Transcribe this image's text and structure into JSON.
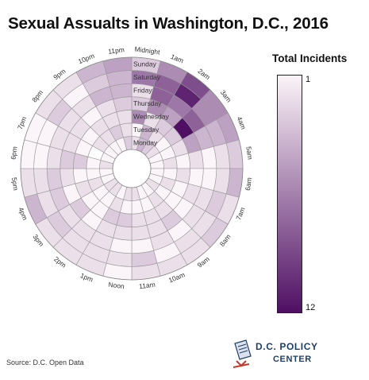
{
  "title": "Sexual Assualts in Washington, D.C., 2016",
  "source": "Source: D.C. Open Data",
  "logo": {
    "line1": "D.C. POLICY",
    "line2": "CENTER"
  },
  "legend": {
    "title": "Total Incidents",
    "min_label": "1",
    "max_label": "12"
  },
  "colors": {
    "low": "#fbf4f8",
    "high": "#4f0f63",
    "grid": "#999999",
    "empty": "#ffffff"
  },
  "chart_data": {
    "type": "heatmap",
    "layout": "radial",
    "title": "Sexual Assualts in Washington, D.C., 2016",
    "legend_title": "Total Incidents",
    "color_range": [
      1,
      12
    ],
    "hours": [
      "Midnight",
      "1am",
      "2am",
      "3am",
      "4am",
      "5am",
      "6am",
      "7am",
      "8am",
      "9am",
      "10am",
      "11am",
      "Noon",
      "1pm",
      "2pm",
      "3pm",
      "4pm",
      "5pm",
      "6pm",
      "7pm",
      "8pm",
      "9pm",
      "10pm",
      "11pm"
    ],
    "days_inner_to_outer": [
      "Monday",
      "Tuesday",
      "Wednesday",
      "Thursday",
      "Friday",
      "Saturday",
      "Sunday"
    ],
    "values_by_hour": [
      [
        2,
        1,
        6,
        3,
        2,
        7,
        3
      ],
      [
        4,
        4,
        2,
        6,
        8,
        8,
        6
      ],
      [
        3,
        2,
        3,
        5,
        7,
        11,
        9
      ],
      [
        2,
        1,
        3,
        12,
        8,
        6,
        6
      ],
      [
        1,
        1,
        2,
        5,
        4,
        4,
        5
      ],
      [
        1,
        2,
        1,
        2,
        1,
        2,
        3
      ],
      [
        1,
        1,
        2,
        1,
        1,
        2,
        4
      ],
      [
        1,
        2,
        1,
        2,
        2,
        3,
        2
      ],
      [
        2,
        1,
        1,
        1,
        2,
        2,
        3
      ],
      [
        1,
        2,
        2,
        3,
        1,
        2,
        2
      ],
      [
        1,
        1,
        2,
        2,
        2,
        1,
        2
      ],
      [
        2,
        1,
        2,
        2,
        1,
        3,
        2
      ],
      [
        2,
        1,
        3,
        2,
        1,
        2,
        1
      ],
      [
        1,
        2,
        3,
        2,
        2,
        2,
        2
      ],
      [
        2,
        1,
        1,
        1,
        2,
        2,
        2
      ],
      [
        2,
        1,
        1,
        3,
        2,
        3,
        2
      ],
      [
        1,
        2,
        2,
        1,
        3,
        2,
        4
      ],
      [
        1,
        1,
        1,
        2,
        3,
        2,
        2
      ],
      [
        2,
        1,
        3,
        3,
        2,
        1,
        1
      ],
      [
        1,
        0,
        1,
        2,
        2,
        1,
        1
      ],
      [
        1,
        2,
        1,
        2,
        2,
        3,
        2
      ],
      [
        1,
        2,
        2,
        1,
        2,
        1,
        2
      ],
      [
        1,
        3,
        2,
        2,
        4,
        3,
        4
      ],
      [
        3,
        2,
        2,
        3,
        4,
        4,
        5
      ]
    ]
  }
}
